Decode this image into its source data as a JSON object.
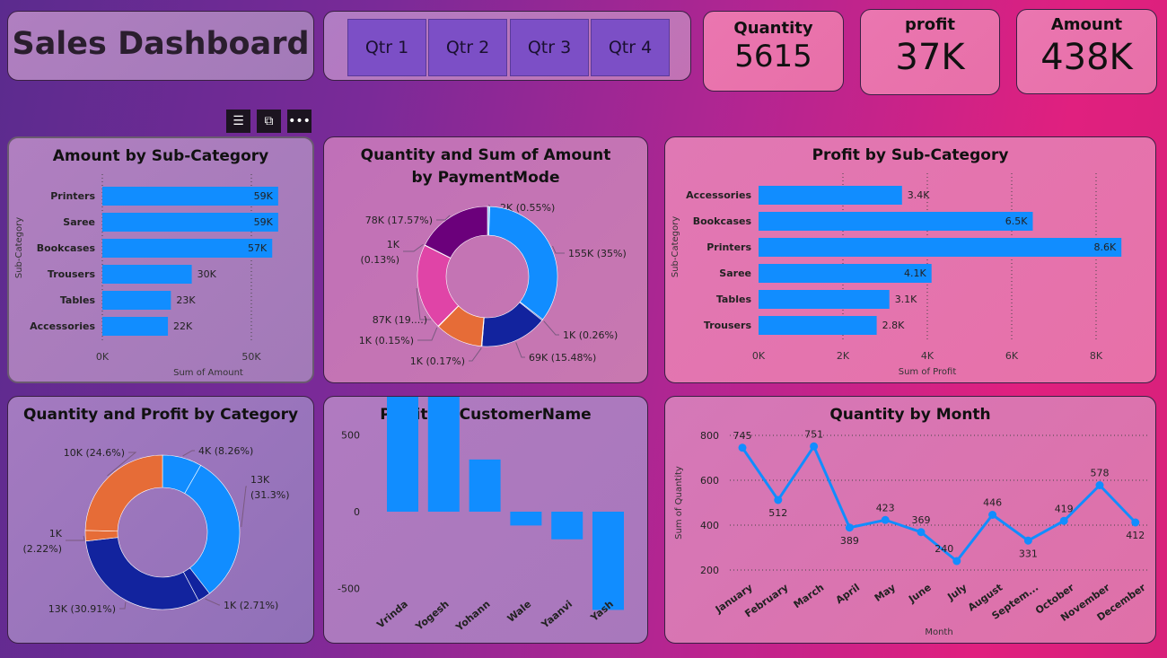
{
  "header": {
    "title": "Sales Dashboard"
  },
  "quarters": [
    "Qtr 1",
    "Qtr 2",
    "Qtr 3",
    "Qtr 4"
  ],
  "kpis": {
    "quantity": {
      "label": "Quantity",
      "value": "5615"
    },
    "profit": {
      "label": "profit",
      "value": "37K"
    },
    "amount": {
      "label": "Amount",
      "value": "438K"
    }
  },
  "visual_header_icons": [
    "filter-icon",
    "focus-mode-icon",
    "more-options-icon"
  ],
  "colors": {
    "bar": "#118dff",
    "blue": "#118dff",
    "dark_blue": "#12239e",
    "orange": "#e66c37",
    "pink": "#e044a7",
    "purple": "#6b007b"
  },
  "chart_data": [
    {
      "type": "bar",
      "orientation": "horizontal",
      "title": "Amount by Sub-Category",
      "ylabel": "Sub-Category",
      "xlabel": "Sum of Amount",
      "categories": [
        "Printers",
        "Saree",
        "Bookcases",
        "Trousers",
        "Tables",
        "Accessories"
      ],
      "values": [
        59,
        59,
        57,
        30,
        23,
        22
      ],
      "data_labels": [
        "59K",
        "59K",
        "57K",
        "30K",
        "23K",
        "22K"
      ],
      "xticks": [
        "0K",
        "50K"
      ],
      "xlim": [
        0,
        65
      ]
    },
    {
      "type": "pie",
      "donut": true,
      "title": "Quantity and Sum of Amount by PaymentMode",
      "slices": [
        {
          "value": 0.55,
          "label": "2K (0.55%)",
          "color": "#9fd0ff"
        },
        {
          "value": 35,
          "label": "155K (35%)",
          "color": "#118dff"
        },
        {
          "value": 0.26,
          "label": "1K (0.26%)",
          "color": "#3048b8"
        },
        {
          "value": 15.48,
          "label": "69K (15.48%)",
          "color": "#12239e"
        },
        {
          "value": 0.17,
          "label": "1K (0.17%)",
          "color": "#f0a070"
        },
        {
          "value": 10.9,
          "label": "",
          "color": "#e66c37"
        },
        {
          "value": 0.15,
          "label": "1K (0.15%)",
          "color": "#f070c0"
        },
        {
          "value": 19.86,
          "label": "87K (19....)",
          "color": "#e044a7"
        },
        {
          "value": 0.13,
          "label": "1K (0.13%)",
          "color": "#8a2a9a"
        },
        {
          "value": 17.57,
          "label": "78K (17.57%)",
          "color": "#6b007b"
        }
      ]
    },
    {
      "type": "bar",
      "orientation": "horizontal",
      "title": "Profit by Sub-Category",
      "ylabel": "Sub-Category",
      "xlabel": "Sum of Profit",
      "categories": [
        "Accessories",
        "Bookcases",
        "Printers",
        "Saree",
        "Tables",
        "Trousers"
      ],
      "values": [
        3.4,
        6.5,
        8.6,
        4.1,
        3.1,
        2.8
      ],
      "data_labels": [
        "3.4K",
        "6.5K",
        "8.6K",
        "4.1K",
        "3.1K",
        "2.8K"
      ],
      "xticks": [
        "0K",
        "2K",
        "4K",
        "6K",
        "8K"
      ],
      "xlim": [
        0,
        9
      ],
      "grid": true
    },
    {
      "type": "pie",
      "donut": true,
      "title": "Quantity and Profit by Category",
      "slices": [
        {
          "value": 8.26,
          "label": "4K (8.26%)",
          "color": "#118dff"
        },
        {
          "value": 31.3,
          "label": "13K (31.3%)",
          "color": "#118dff"
        },
        {
          "value": 2.71,
          "label": "1K (2.71%)",
          "color": "#12239e"
        },
        {
          "value": 30.91,
          "label": "13K (30.91%)",
          "color": "#12239e"
        },
        {
          "value": 2.22,
          "label": "1K (2.22%)",
          "color": "#e66c37"
        },
        {
          "value": 24.6,
          "label": "10K (24.6%)",
          "color": "#e66c37"
        }
      ]
    },
    {
      "type": "bar",
      "orientation": "vertical",
      "title": "Profit by CustomerName",
      "categories": [
        "Vrinda",
        "Yogesh",
        "Yohann",
        "Wale",
        "Yaanvi",
        "Yash"
      ],
      "values": [
        920,
        850,
        340,
        -90,
        -180,
        -640
      ],
      "yticks": [
        "1000",
        "500",
        "0",
        "-500",
        "-1000"
      ],
      "ylim": [
        -1000,
        1000
      ]
    },
    {
      "type": "line",
      "title": "Quantity by Month",
      "xlabel": "Month",
      "ylabel": "Sum of Quantity",
      "categories": [
        "January",
        "February",
        "March",
        "April",
        "May",
        "June",
        "July",
        "August",
        "Septem...",
        "October",
        "November",
        "December"
      ],
      "values": [
        745,
        512,
        751,
        389,
        423,
        369,
        240,
        446,
        331,
        419,
        578,
        412
      ],
      "yticks": [
        "800",
        "600",
        "400",
        "200"
      ],
      "ylim": [
        200,
        800
      ],
      "grid": true
    }
  ]
}
